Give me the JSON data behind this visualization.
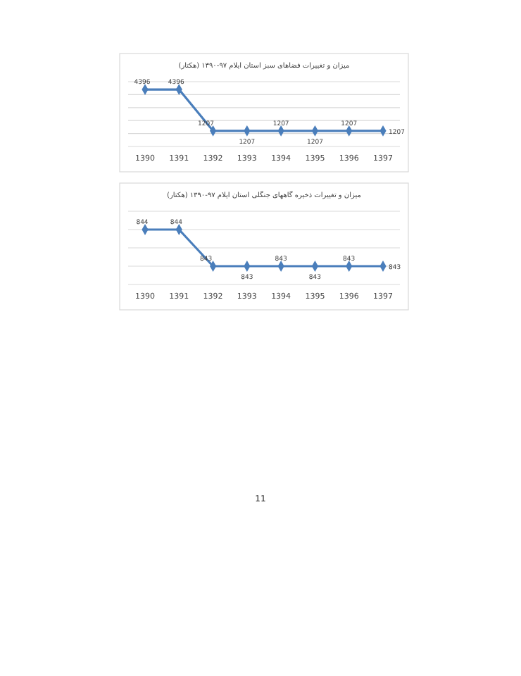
{
  "chart_data": [
    {
      "type": "line",
      "title": "میزان و تغییرات فضاهای سبز استان ایلام ۹۷-۱۳۹۰ (هکتار)",
      "categories": [
        "1390",
        "1391",
        "1392",
        "1393",
        "1394",
        "1395",
        "1396",
        "1397"
      ],
      "series": [
        {
          "color": "#4a7ebb",
          "values": [
            4396,
            4396,
            1207,
            1207,
            1207,
            1207,
            1207,
            1207
          ]
        }
      ],
      "ylim": [
        0,
        5000
      ],
      "yticks": [
        {
          "value": 0,
          "label": null
        },
        {
          "value": 1000,
          "label": null
        },
        {
          "value": 2000,
          "label": null
        },
        {
          "value": 3000,
          "label": null
        },
        {
          "value": 4000,
          "label": null
        },
        {
          "value": 5000,
          "label": null
        }
      ],
      "tick_labels": "x",
      "data_labels": true,
      "grid": "y",
      "marker": "diamond",
      "line_style": "solid"
    },
    {
      "type": "line",
      "title": "میزان و تغییرات ذخیره گاههای جنگلی استان ایلام ۹۷-۱۳۹۰ (هکتار)",
      "categories": [
        "1390",
        "1391",
        "1392",
        "1393",
        "1394",
        "1395",
        "1396",
        "1397"
      ],
      "series": [
        {
          "color": "#4a7ebb",
          "values": [
            844,
            844,
            843,
            843,
            843,
            843,
            843,
            843
          ]
        }
      ],
      "ylim": [
        842.5,
        844.5
      ],
      "yticks": [
        {
          "value": 842.5,
          "label": null
        },
        {
          "value": 843,
          "label": null
        },
        {
          "value": 843.5,
          "label": null
        },
        {
          "value": 844,
          "label": null
        },
        {
          "value": 844.5,
          "label": null
        }
      ],
      "tick_labels": "x",
      "data_labels": true,
      "grid": "y",
      "marker": "diamond",
      "line_style": "solid",
      "annotations": [
        "11"
      ]
    }
  ]
}
